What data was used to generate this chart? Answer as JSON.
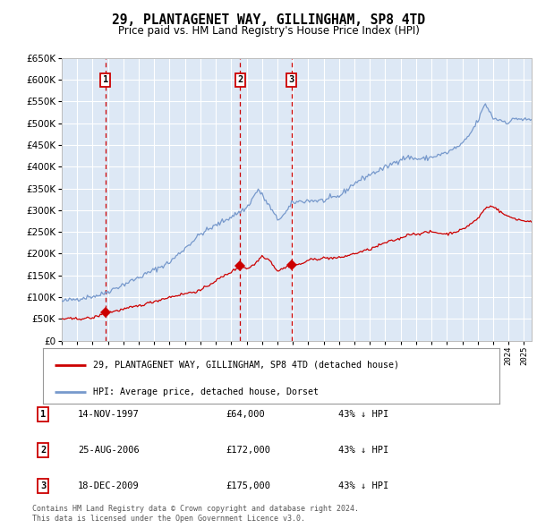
{
  "title": "29, PLANTAGENET WAY, GILLINGHAM, SP8 4TD",
  "subtitle": "Price paid vs. HM Land Registry's House Price Index (HPI)",
  "legend_line1": "29, PLANTAGENET WAY, GILLINGHAM, SP8 4TD (detached house)",
  "legend_line2": "HPI: Average price, detached house, Dorset",
  "footer1": "Contains HM Land Registry data © Crown copyright and database right 2024.",
  "footer2": "This data is licensed under the Open Government Licence v3.0.",
  "transactions": [
    {
      "num": 1,
      "date": "14-NOV-1997",
      "price": 64000,
      "pct": "43% ↓ HPI"
    },
    {
      "num": 2,
      "date": "25-AUG-2006",
      "price": 172000,
      "pct": "43% ↓ HPI"
    },
    {
      "num": 3,
      "date": "18-DEC-2009",
      "price": 175000,
      "pct": "43% ↓ HPI"
    }
  ],
  "red_color": "#cc0000",
  "blue_color": "#7799cc",
  "bg_color": "#dde8f5",
  "grid_color": "#ffffff",
  "vline_color": "#cc0000",
  "box_color": "#cc0000",
  "ylim": [
    0,
    650000
  ],
  "yticks": [
    0,
    50000,
    100000,
    150000,
    200000,
    250000,
    300000,
    350000,
    400000,
    450000,
    500000,
    550000,
    600000,
    650000
  ],
  "hpi_anchors": {
    "1995.0": 90000,
    "1997.5": 105000,
    "2000.0": 145000,
    "2002.0": 180000,
    "2004.0": 245000,
    "2005.5": 275000,
    "2007.0": 305000,
    "2007.75": 348000,
    "2008.5": 308000,
    "2009.0": 278000,
    "2009.5": 292000,
    "2010.0": 318000,
    "2011.0": 322000,
    "2012.0": 322000,
    "2013.0": 332000,
    "2014.0": 362000,
    "2015.0": 382000,
    "2016.0": 398000,
    "2017.0": 418000,
    "2017.5": 422000,
    "2018.0": 418000,
    "2018.5": 418000,
    "2019.0": 422000,
    "2020.0": 432000,
    "2021.0": 452000,
    "2021.5": 475000,
    "2022.0": 505000,
    "2022.5": 545000,
    "2023.0": 512000,
    "2024.0": 502000,
    "2024.5": 512000,
    "2025.0": 508000
  },
  "red_anchors": {
    "1995.0": 50000,
    "1996.0": 50000,
    "1997.0": 52000,
    "1997.9": 64000,
    "1998.5": 68000,
    "2000.0": 80000,
    "2001.0": 90000,
    "2002.0": 100000,
    "2003.0": 108000,
    "2004.0": 115000,
    "2005.0": 138000,
    "2005.5": 148000,
    "2006.0": 158000,
    "2006.65": 172000,
    "2006.8": 170000,
    "2007.0": 165000,
    "2007.5": 175000,
    "2008.0": 195000,
    "2008.5": 185000,
    "2009.0": 160000,
    "2009.95": 175000,
    "2010.0": 175000,
    "2010.5": 175000,
    "2011.0": 185000,
    "2012.0": 190000,
    "2013.0": 190000,
    "2014.0": 200000,
    "2015.0": 210000,
    "2016.0": 225000,
    "2017.0": 235000,
    "2017.5": 245000,
    "2018.0": 245000,
    "2018.5": 248000,
    "2019.0": 250000,
    "2020.0": 245000,
    "2021.0": 255000,
    "2022.0": 280000,
    "2022.5": 305000,
    "2023.0": 310000,
    "2023.5": 295000,
    "2024.0": 285000,
    "2024.5": 280000,
    "2025.0": 275000
  },
  "t1_x": 1997.833,
  "t1_y": 64000,
  "t2_x": 2006.583,
  "t2_y": 172000,
  "t3_x": 2009.917,
  "t3_y": 175000,
  "xmin": 1995.0,
  "xmax": 2025.5
}
